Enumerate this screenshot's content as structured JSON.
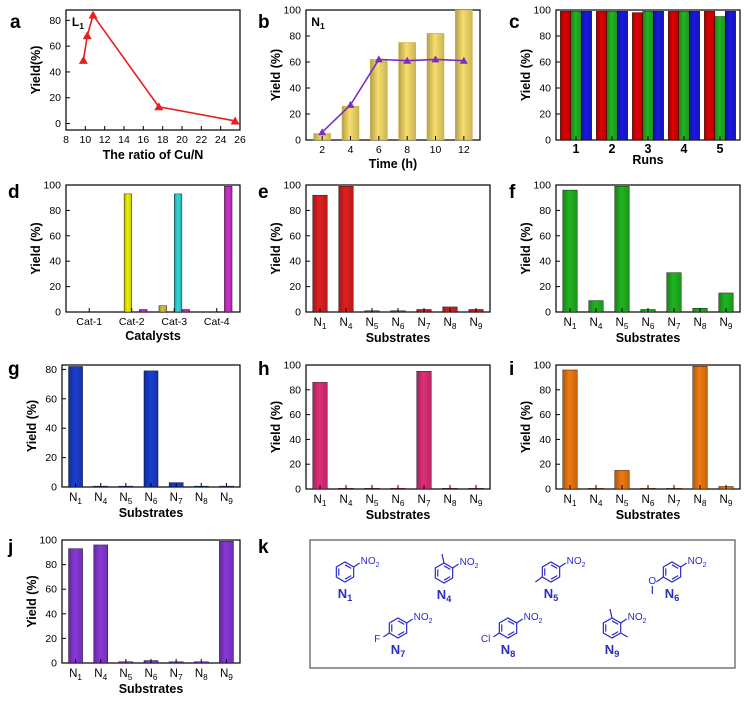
{
  "panels": [
    {
      "letter": "a",
      "frame": "a"
    },
    {
      "letter": "b",
      "frame": "b"
    },
    {
      "letter": "c",
      "frame": "c"
    },
    {
      "letter": "d",
      "frame": "d"
    },
    {
      "letter": "e",
      "frame": "e"
    },
    {
      "letter": "f",
      "frame": "f"
    },
    {
      "letter": "g",
      "frame": "g"
    },
    {
      "letter": "h",
      "frame": "h"
    },
    {
      "letter": "i",
      "frame": "i"
    },
    {
      "letter": "j",
      "frame": "j"
    },
    {
      "letter": "k",
      "frame": "k"
    }
  ],
  "substrate_labels": [
    "N1",
    "N4",
    "N5",
    "N6",
    "N7",
    "N8",
    "N9"
  ],
  "chart_data": [
    {
      "id": "a",
      "type": "line",
      "inset_label": "L1",
      "xlabel": "The ratio of Cu/N",
      "ylabel": "Yield(%)",
      "xlim": [
        8,
        26
      ],
      "ylim": [
        -5,
        88
      ],
      "xticks": [
        8,
        10,
        12,
        14,
        16,
        18,
        20,
        22,
        24,
        26
      ],
      "yticks": [
        0,
        20,
        40,
        60,
        80
      ],
      "color": "#e62020",
      "x": [
        9.8,
        10.2,
        10.8,
        17.6,
        25.5
      ],
      "y": [
        49,
        68,
        84,
        13,
        2
      ]
    },
    {
      "id": "b",
      "type": "bar+line",
      "inset_label": "N1",
      "xlabel": "Time (h)",
      "ylabel": "Yield (%)",
      "categories": [
        "2",
        "4",
        "6",
        "8",
        "10",
        "12"
      ],
      "ylim": [
        0,
        100
      ],
      "yticks": [
        0,
        20,
        40,
        60,
        80,
        100
      ],
      "bar_color": "#f7dd6b",
      "bar_values": [
        5,
        26,
        62,
        75,
        82,
        100
      ],
      "line_color": "#7a2fc0",
      "line_values": [
        6,
        27,
        62,
        61,
        62,
        61
      ]
    },
    {
      "id": "c",
      "type": "bar",
      "xlabel": "Runs",
      "ylabel": "Yield (%)",
      "categories": [
        "1",
        "2",
        "3",
        "4",
        "5"
      ],
      "ylim": [
        0,
        100
      ],
      "yticks": [
        0,
        20,
        40,
        60,
        80,
        100
      ],
      "colors": [
        "#e00000",
        "#21b521",
        "#1818e0"
      ],
      "series": [
        {
          "values": [
            99,
            99,
            98,
            99,
            99
          ]
        },
        {
          "values": [
            99,
            99,
            99,
            99,
            95
          ]
        },
        {
          "values": [
            99,
            99,
            99,
            99,
            99
          ]
        }
      ]
    },
    {
      "id": "d",
      "type": "bar",
      "xlabel": "Catalysts",
      "ylabel": "Yield (%)",
      "categories": [
        "Cat-1",
        "Cat-2",
        "Cat-3",
        "Cat-4"
      ],
      "ylim": [
        0,
        100
      ],
      "yticks": [
        0,
        20,
        40,
        60,
        80,
        100
      ],
      "colors": [
        "#d4c43a",
        "#f1f100",
        "#30d8d8",
        "#d030d0"
      ],
      "note": "each category shows bars of four colours; values per category in order yellow-olive, yellow, cyan, magenta",
      "values": [
        [
          0,
          0,
          0,
          0
        ],
        [
          0,
          93,
          0,
          2
        ],
        [
          5,
          0,
          93,
          2
        ],
        [
          0,
          0,
          0,
          99
        ]
      ]
    },
    {
      "id": "e",
      "type": "bar",
      "xlabel": "Substrates",
      "ylabel": "Yield (%)",
      "ylim": [
        0,
        100
      ],
      "yticks": [
        0,
        20,
        40,
        60,
        80,
        100
      ],
      "color": "#e02020",
      "values": [
        92,
        99,
        1,
        1,
        2,
        4,
        2
      ]
    },
    {
      "id": "f",
      "type": "bar",
      "xlabel": "Substrates",
      "ylabel": "Yield (%)",
      "ylim": [
        0,
        100
      ],
      "yticks": [
        0,
        20,
        40,
        60,
        80,
        100
      ],
      "color": "#21b521",
      "values": [
        96,
        9,
        99,
        2,
        31,
        3,
        15
      ]
    },
    {
      "id": "g",
      "type": "bar",
      "xlabel": "Substrates",
      "ylabel": "Yield (%)",
      "ylim": [
        0,
        83
      ],
      "yticks": [
        0,
        20,
        40,
        60,
        80
      ],
      "color": "#1a3fd0",
      "values": [
        82,
        0,
        0,
        79,
        3,
        0,
        0
      ]
    },
    {
      "id": "h",
      "type": "bar",
      "xlabel": "Substrates",
      "ylabel": "Yield (%)",
      "ylim": [
        0,
        100
      ],
      "yticks": [
        0,
        20,
        40,
        60,
        80,
        100
      ],
      "color": "#e0307a",
      "values": [
        86,
        0,
        0,
        0,
        95,
        0,
        0
      ]
    },
    {
      "id": "i",
      "type": "bar",
      "xlabel": "Substrates",
      "ylabel": "Yield (%)",
      "ylim": [
        0,
        100
      ],
      "yticks": [
        0,
        20,
        40,
        60,
        80,
        100
      ],
      "color": "#f07a10",
      "values": [
        96,
        0,
        15,
        0,
        0,
        99,
        2
      ]
    },
    {
      "id": "j",
      "type": "bar",
      "xlabel": "Substrates",
      "ylabel": "Yield (%)",
      "ylim": [
        0,
        100
      ],
      "yticks": [
        0,
        20,
        40,
        60,
        80,
        100
      ],
      "color": "#8a38d8",
      "values": [
        93,
        96,
        1,
        2,
        1,
        1,
        99
      ]
    }
  ],
  "molecules": [
    {
      "id": "N1",
      "substituent": "",
      "group": "NO2"
    },
    {
      "id": "N4",
      "substituent": "",
      "group": "NO2"
    },
    {
      "id": "N5",
      "substituent": "",
      "group": "NO2"
    },
    {
      "id": "N6",
      "substituent": "O",
      "group": "NO2"
    },
    {
      "id": "N7",
      "substituent": "F",
      "group": "NO2"
    },
    {
      "id": "N8",
      "substituent": "Cl",
      "group": "NO2"
    },
    {
      "id": "N9",
      "substituent": "",
      "group": "NO2"
    }
  ]
}
